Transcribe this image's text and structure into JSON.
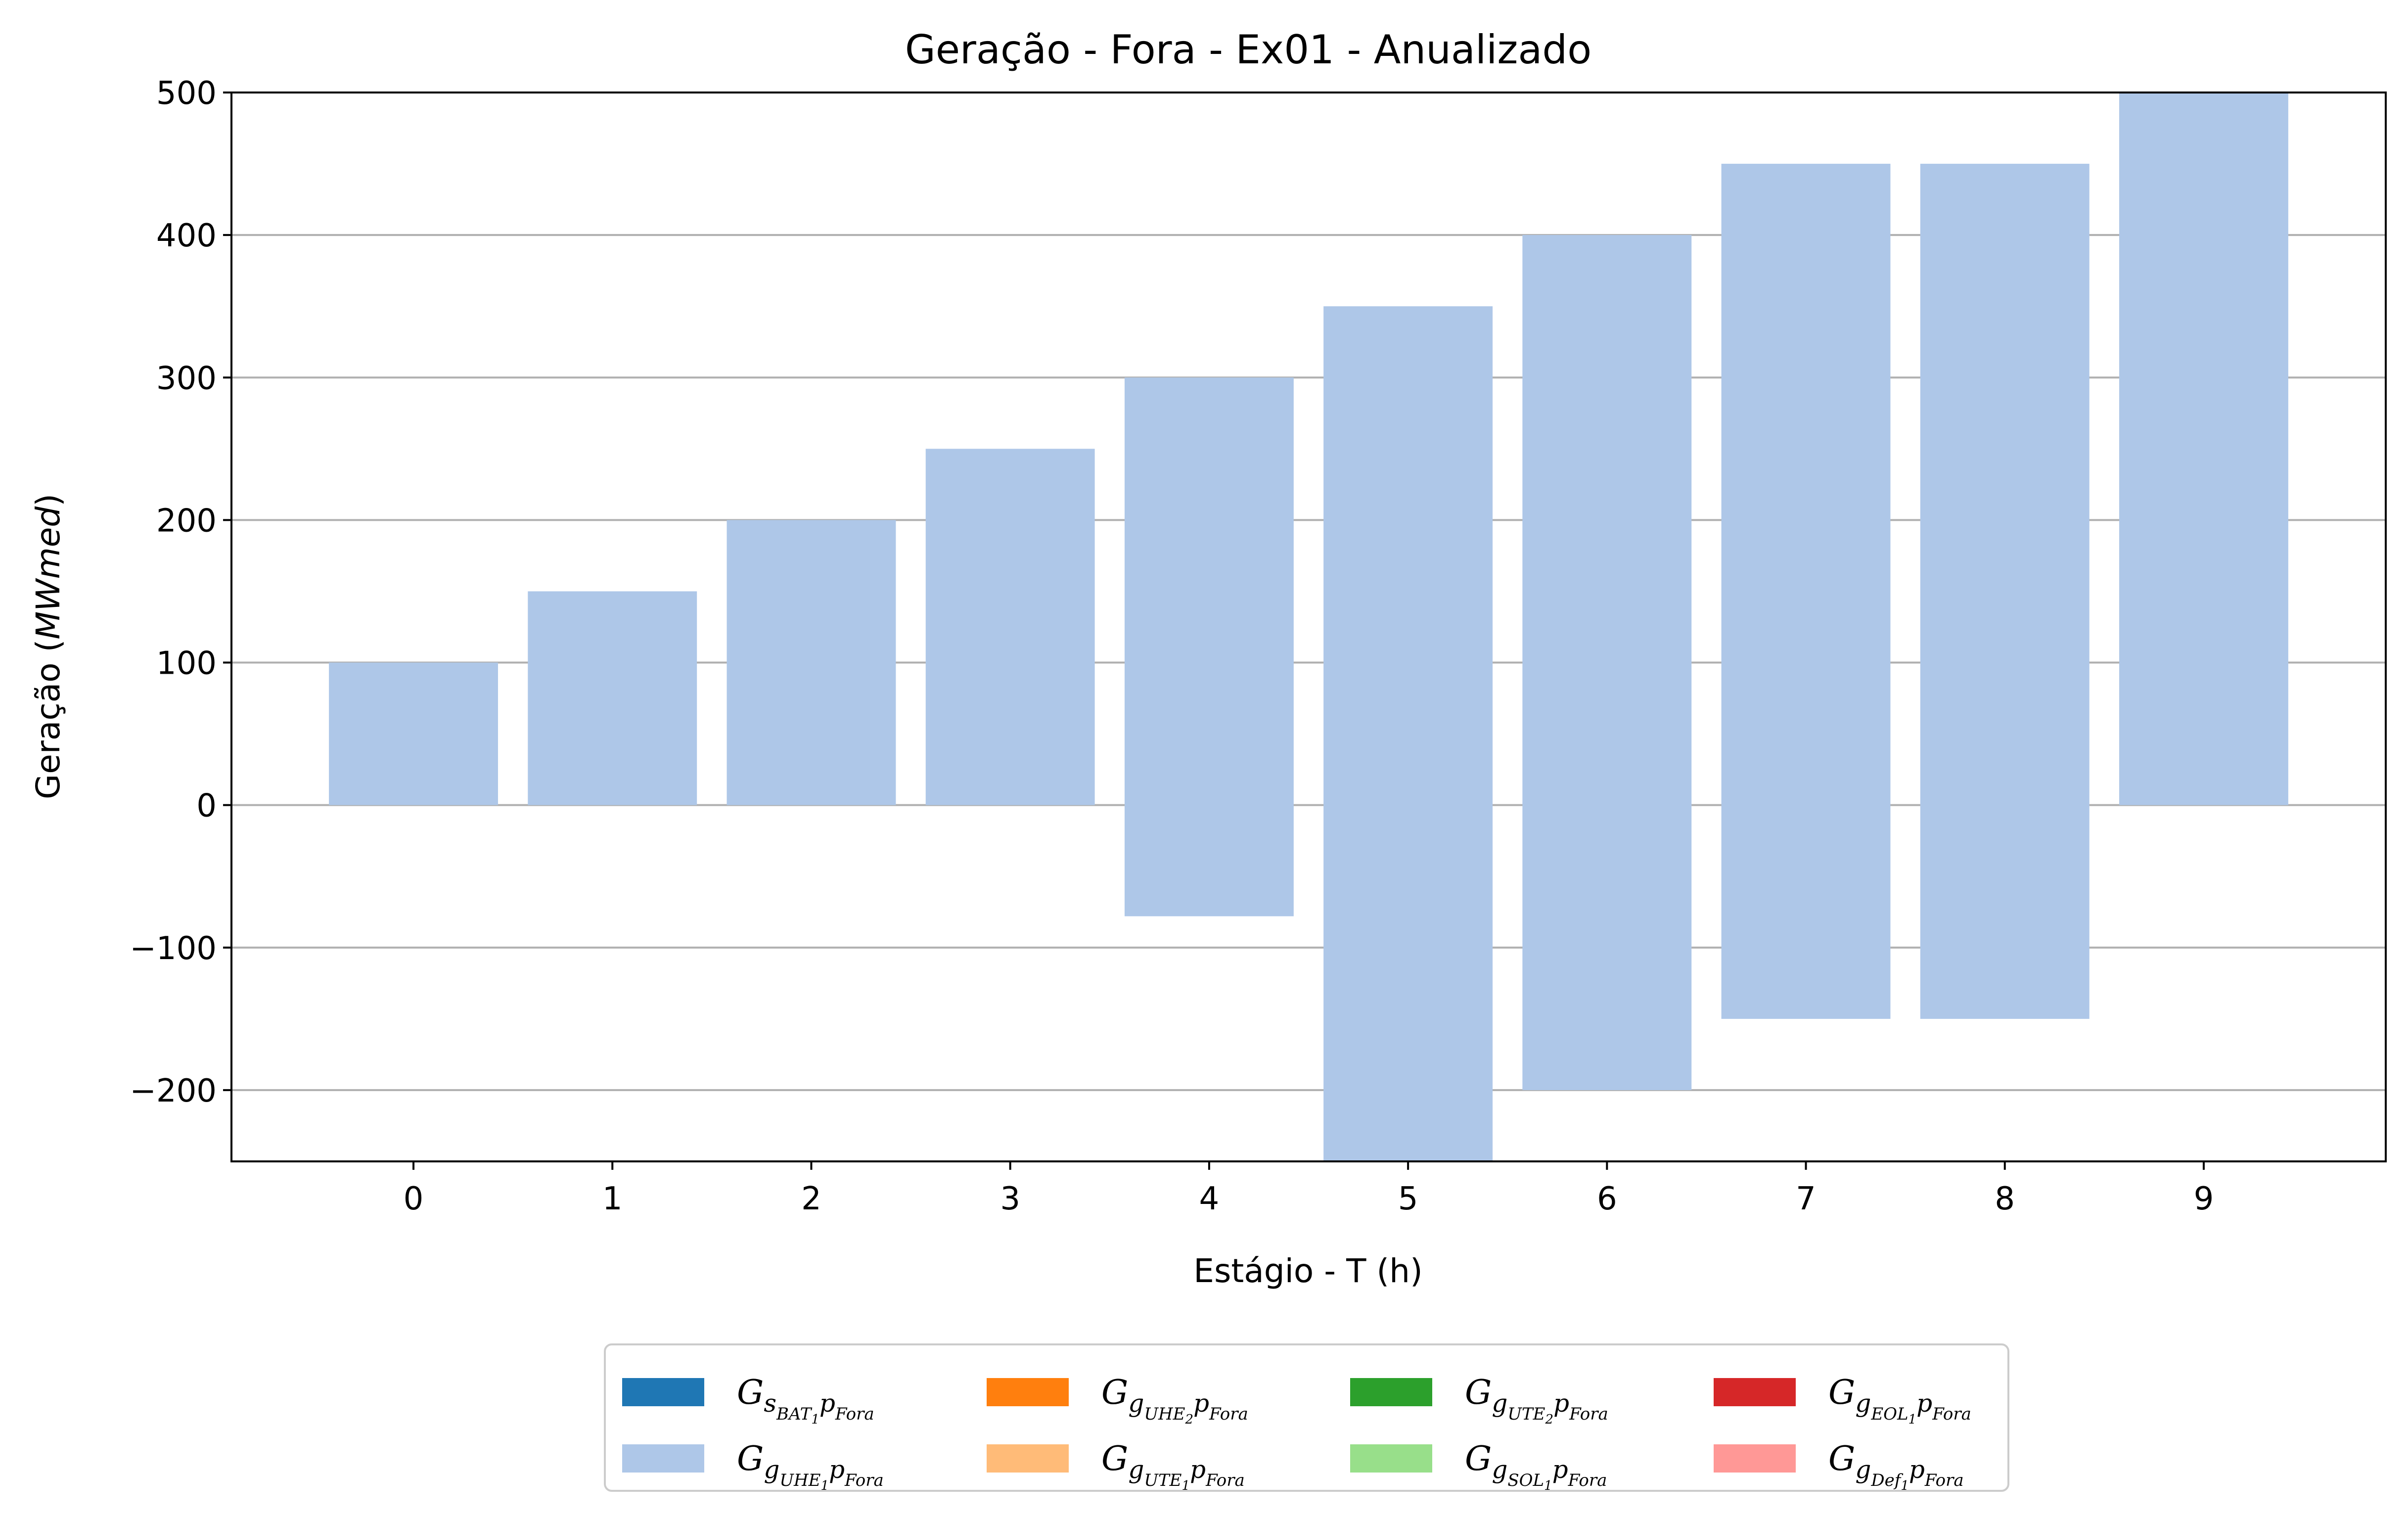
{
  "chart_data": {
    "type": "bar",
    "title": "Geração - Fora - Ex01 - Anualizado",
    "xlabel": "Estágio - T (h)",
    "ylabel_text": "Geração (",
    "ylabel_unit": "MWmed",
    "ylabel_close": ")",
    "categories": [
      "0",
      "1",
      "2",
      "3",
      "4",
      "5",
      "6",
      "7",
      "8",
      "9"
    ],
    "ylim": [
      -250,
      500
    ],
    "yticks": [
      -200,
      -100,
      0,
      100,
      200,
      300,
      400,
      500
    ],
    "ytick_labels": [
      "−200",
      "−100",
      "0",
      "100",
      "200",
      "300",
      "400",
      "500"
    ],
    "grid": "horizontal",
    "legend_position": "below",
    "series": [
      {
        "name": "G_{s_{BAT_1}p_{Fora}}",
        "symbol": "G",
        "sub": "s",
        "subsub": "BAT",
        "subsubsub": "1",
        "tail": "p",
        "tailsub": "Fora",
        "color": "#1f77b4",
        "bottom": [
          0,
          0,
          0,
          0,
          0,
          0,
          0,
          0,
          0,
          0
        ],
        "top": [
          0,
          0,
          0,
          0,
          0,
          0,
          0,
          0,
          0,
          0
        ]
      },
      {
        "name": "G_{g_{UHE_1}p_{Fora}}",
        "symbol": "G",
        "sub": "g",
        "subsub": "UHE",
        "subsubsub": "1",
        "tail": "p",
        "tailsub": "Fora",
        "color": "#aec7e8",
        "bottom": [
          0,
          0,
          0,
          0,
          -78,
          -250,
          -200,
          -150,
          -150,
          0
        ],
        "top": [
          100,
          150,
          200,
          250,
          300,
          350,
          400,
          450,
          450,
          500
        ]
      },
      {
        "name": "G_{g_{UHE_2}p_{Fora}}",
        "symbol": "G",
        "sub": "g",
        "subsub": "UHE",
        "subsubsub": "2",
        "tail": "p",
        "tailsub": "Fora",
        "color": "#ff7f0e",
        "bottom": [
          0,
          0,
          0,
          0,
          0,
          0,
          0,
          0,
          0,
          0
        ],
        "top": [
          0,
          0,
          0,
          0,
          0,
          0,
          0,
          0,
          0,
          0
        ]
      },
      {
        "name": "G_{g_{UTE_1}p_{Fora}}",
        "symbol": "G",
        "sub": "g",
        "subsub": "UTE",
        "subsubsub": "1",
        "tail": "p",
        "tailsub": "Fora",
        "color": "#ffbb78",
        "bottom": [
          0,
          0,
          0,
          0,
          0,
          0,
          0,
          0,
          0,
          0
        ],
        "top": [
          0,
          0,
          0,
          0,
          0,
          0,
          0,
          0,
          0,
          0
        ]
      },
      {
        "name": "G_{g_{UTE_2}p_{Fora}}",
        "symbol": "G",
        "sub": "g",
        "subsub": "UTE",
        "subsubsub": "2",
        "tail": "p",
        "tailsub": "Fora",
        "color": "#2ca02c",
        "bottom": [
          0,
          0,
          0,
          0,
          0,
          0,
          0,
          0,
          0,
          0
        ],
        "top": [
          0,
          0,
          0,
          0,
          0,
          0,
          0,
          0,
          0,
          0
        ]
      },
      {
        "name": "G_{g_{SOL_1}p_{Fora}}",
        "symbol": "G",
        "sub": "g",
        "subsub": "SOL",
        "subsubsub": "1",
        "tail": "p",
        "tailsub": "Fora",
        "color": "#98df8a",
        "bottom": [
          0,
          0,
          0,
          0,
          0,
          0,
          0,
          0,
          0,
          0
        ],
        "top": [
          0,
          0,
          0,
          0,
          0,
          0,
          0,
          0,
          0,
          0
        ]
      },
      {
        "name": "G_{g_{EOL_1}p_{Fora}}",
        "symbol": "G",
        "sub": "g",
        "subsub": "EOL",
        "subsubsub": "1",
        "tail": "p",
        "tailsub": "Fora",
        "color": "#d62728",
        "bottom": [
          0,
          0,
          0,
          0,
          0,
          0,
          0,
          0,
          0,
          0
        ],
        "top": [
          0,
          0,
          0,
          0,
          0,
          0,
          0,
          0,
          0,
          0
        ]
      },
      {
        "name": "G_{g_{Def_1}p_{Fora}}",
        "symbol": "G",
        "sub": "g",
        "subsub": "Def",
        "subsubsub": "1",
        "tail": "p",
        "tailsub": "Fora",
        "color": "#ff9896",
        "bottom": [
          0,
          0,
          0,
          0,
          0,
          0,
          0,
          0,
          0,
          0
        ],
        "top": [
          0,
          0,
          0,
          0,
          0,
          0,
          0,
          0,
          0,
          0
        ]
      }
    ]
  }
}
